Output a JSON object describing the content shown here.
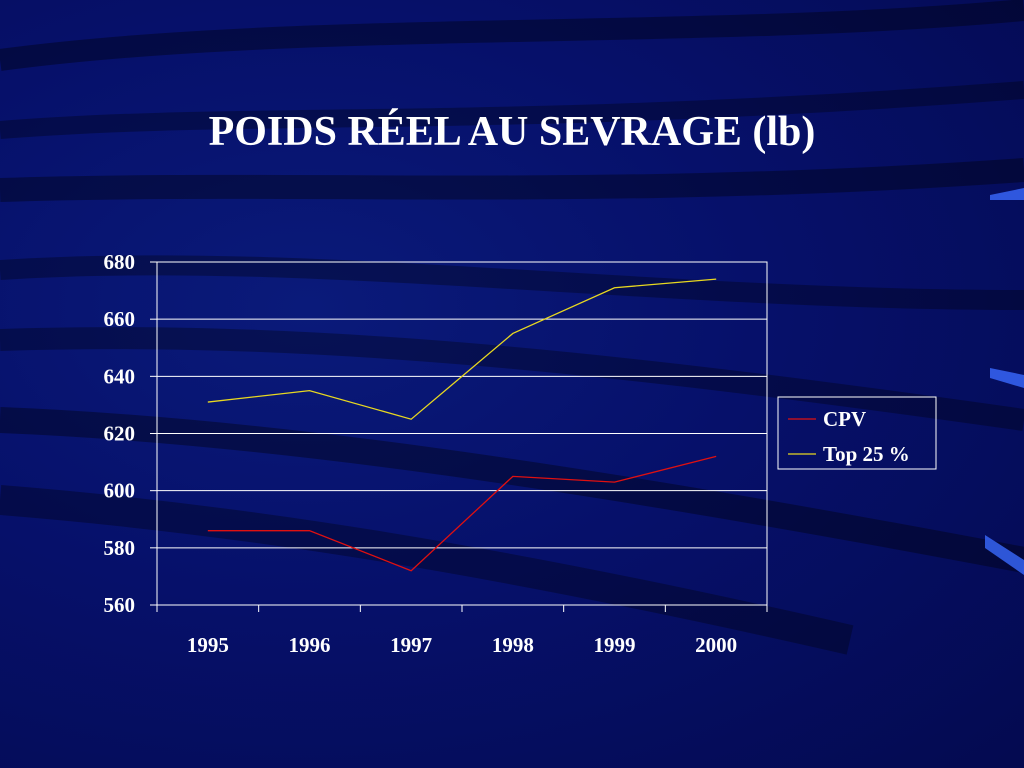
{
  "slide": {
    "title": "POIDS RÉEL AU SEVRAGE (lb)",
    "background_color": "#06106a"
  },
  "chart_data": {
    "type": "line",
    "title": "POIDS RÉEL AU SEVRAGE (lb)",
    "categories": [
      "1995",
      "1996",
      "1997",
      "1998",
      "1999",
      "2000"
    ],
    "series": [
      {
        "name": "CPV",
        "color": "#e01010",
        "values": [
          586,
          586,
          572,
          605,
          603,
          612
        ]
      },
      {
        "name": "Top 25 %",
        "color": "#e8d820",
        "values": [
          631,
          635,
          625,
          655,
          671,
          674
        ]
      }
    ],
    "ylim": [
      560,
      680
    ],
    "yticks": [
      560,
      580,
      600,
      620,
      640,
      660,
      680
    ],
    "grid": true,
    "legend": "right",
    "xlabel": "",
    "ylabel": ""
  }
}
